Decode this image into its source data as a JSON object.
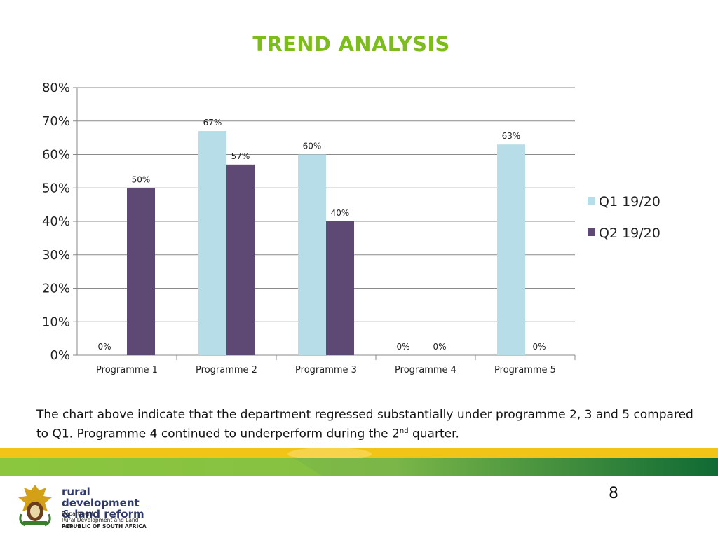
{
  "title": "TREND ANALYSIS",
  "chart_data": {
    "type": "bar",
    "categories": [
      "Programme 1",
      "Programme 2",
      "Programme 3",
      "Programme 4",
      "Programme 5"
    ],
    "series": [
      {
        "name": "Q1 19/20",
        "values": [
          0,
          67,
          60,
          0,
          63
        ],
        "color": "#b7dee8",
        "labels": [
          "0%",
          "67%",
          "60%",
          "0%",
          "63%"
        ]
      },
      {
        "name": "Q2 19/20",
        "values": [
          50,
          57,
          40,
          0,
          0
        ],
        "color": "#5e4874",
        "labels": [
          "50%",
          "57%",
          "40%",
          "0%",
          "0%"
        ]
      }
    ],
    "ylim": [
      0,
      80
    ],
    "yticks": [
      "0%",
      "10%",
      "20%",
      "30%",
      "40%",
      "50%",
      "60%",
      "70%",
      "80%"
    ],
    "grid": true,
    "legend_position": "right"
  },
  "note": {
    "text_before": "The chart above  indicate that the department regressed substantially under programme 2, 3 and 5 compared to Q1. Programme 4 continued to underperform during the 2",
    "superscript": "nd",
    "text_after": " quarter."
  },
  "page_number": "8",
  "footer": {
    "logo_line1": "rural development",
    "logo_line2": "& land reform",
    "dept_line1": "Department:",
    "dept_line2": "Rural Development and Land Reform",
    "dept_line3": "REPUBLIC OF SOUTH AFRICA"
  },
  "colors": {
    "title": "#7cbc1d",
    "band_yellow": "#f2c418",
    "band_green_dark": "#1e7a3a",
    "band_green_light": "#8cc63f"
  }
}
